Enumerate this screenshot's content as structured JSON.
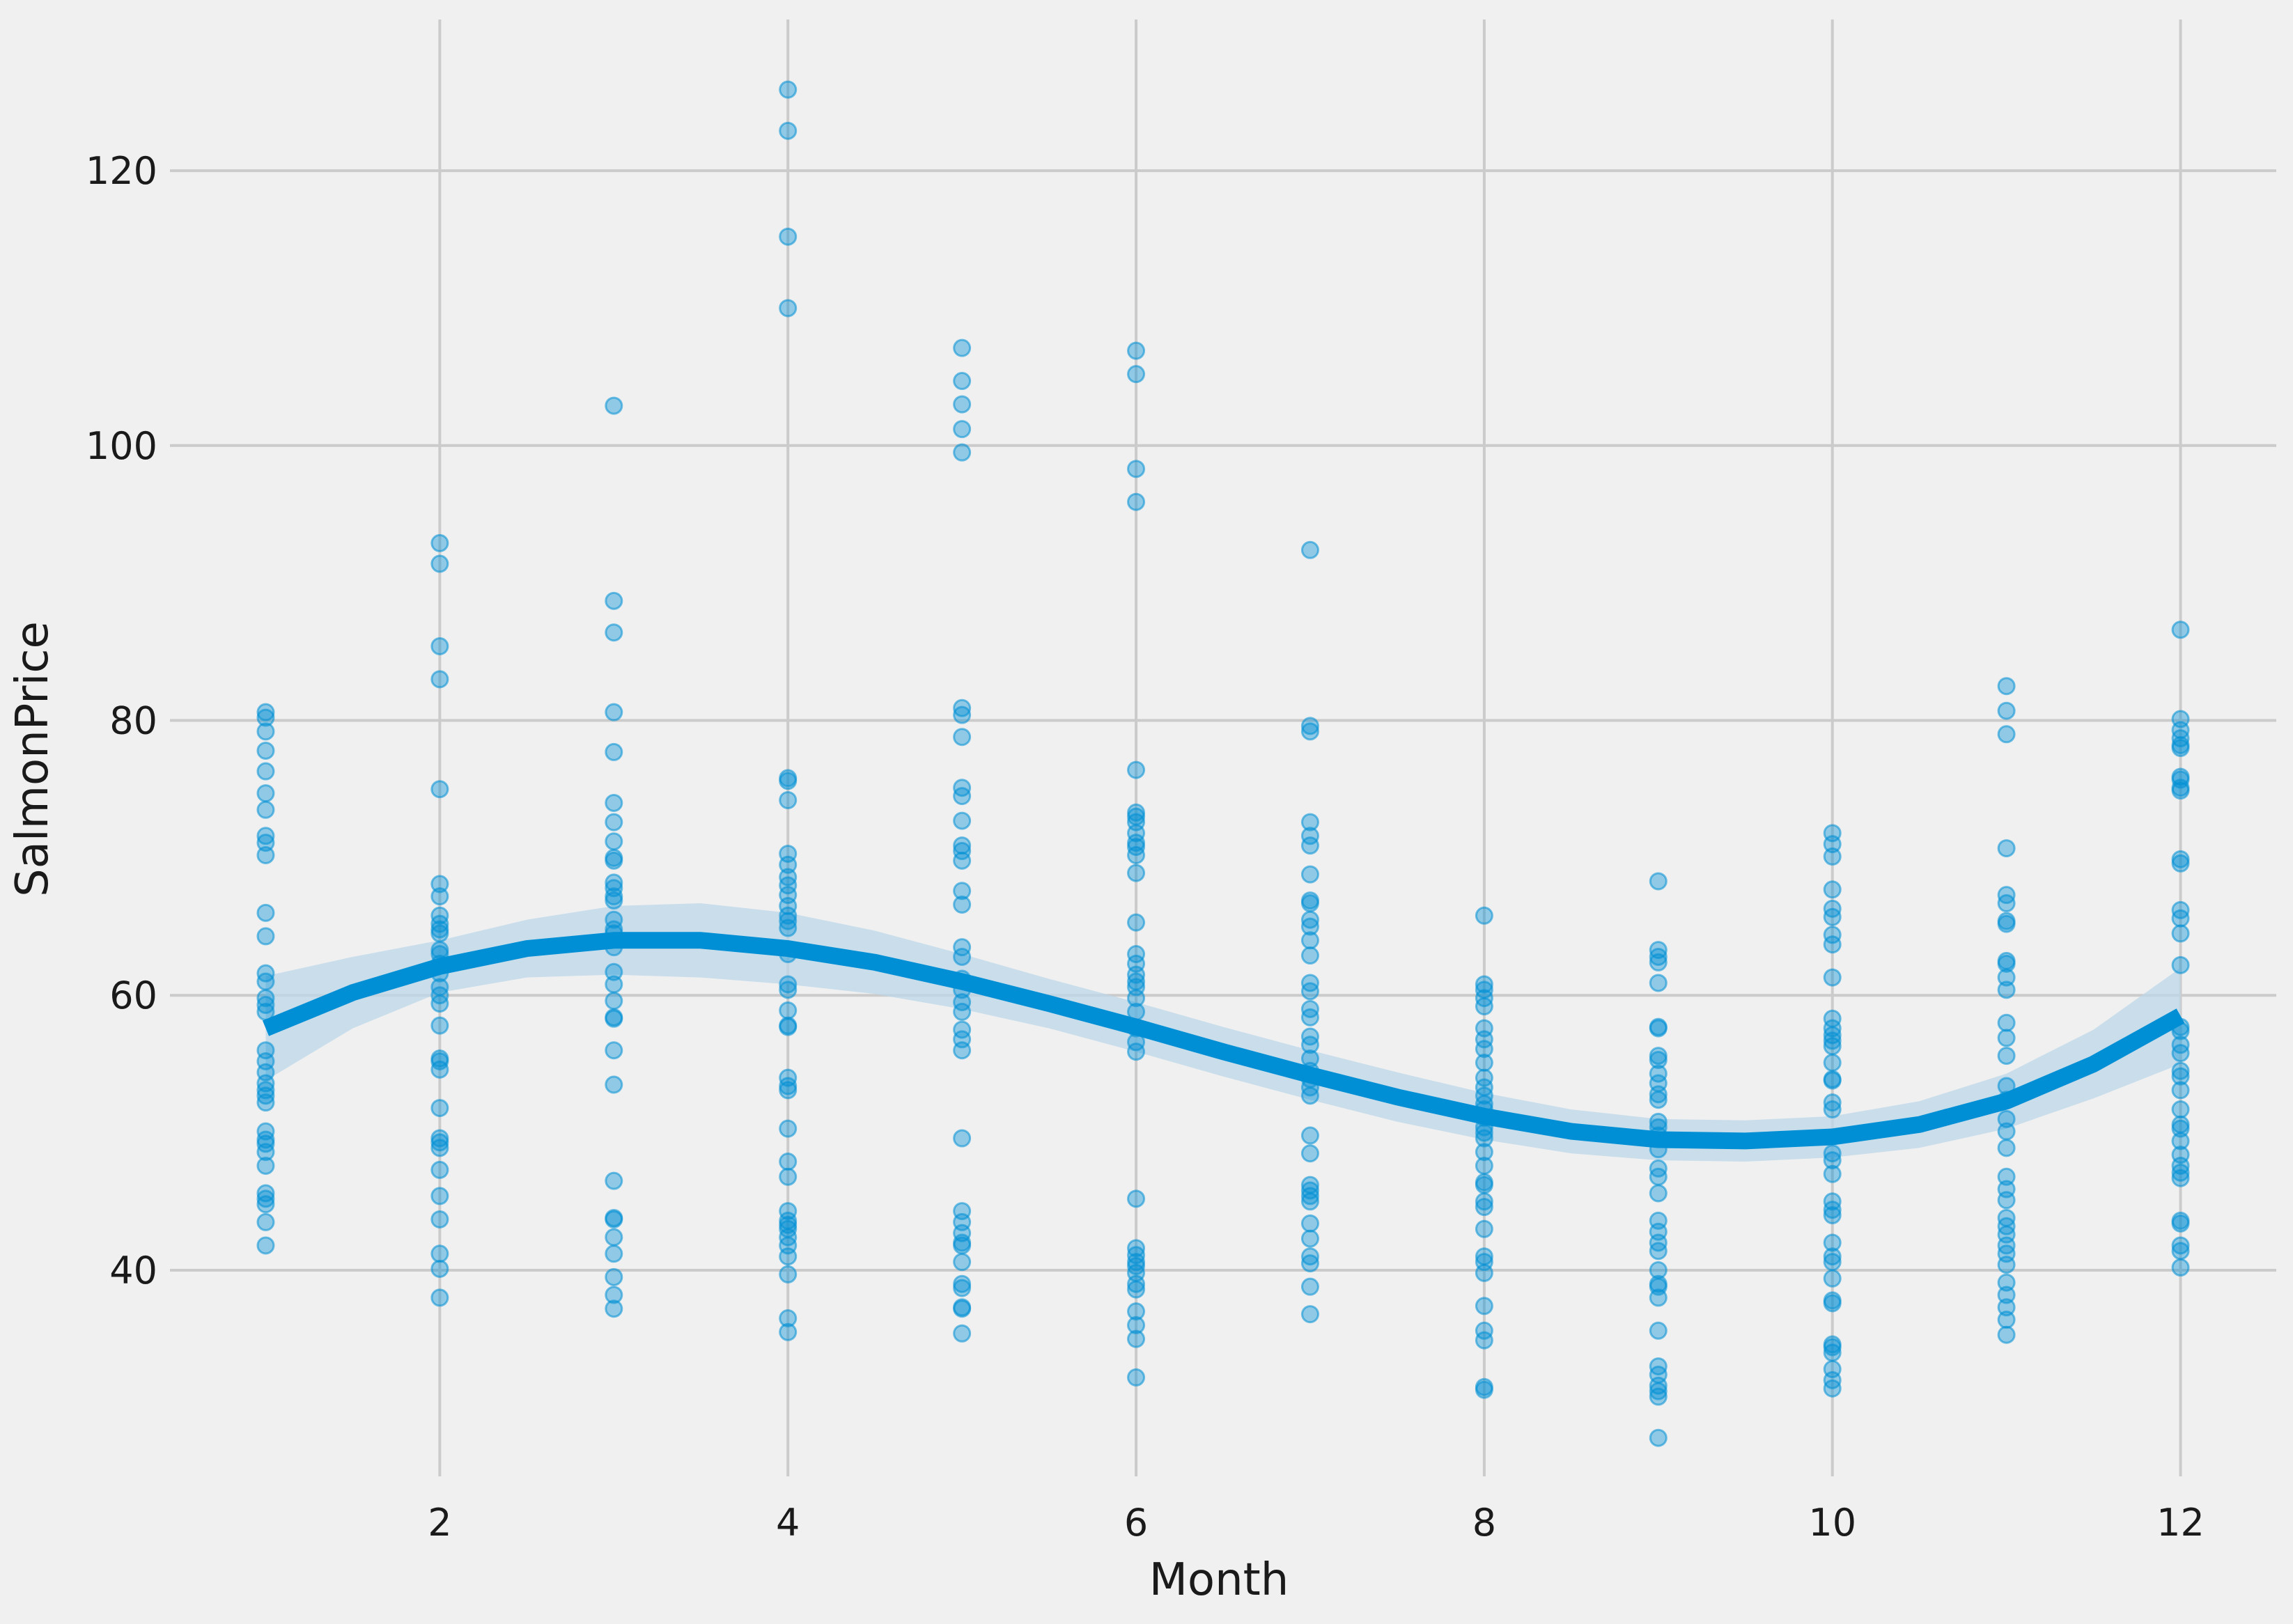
{
  "chart_data": {
    "type": "scatter",
    "xlabel": "Month",
    "ylabel": "SalmonPrice",
    "xlim": [
      0.45,
      12.55
    ],
    "ylim": [
      25,
      131
    ],
    "grid": true,
    "x_ticks": [
      2,
      4,
      6,
      8,
      10,
      12
    ],
    "y_ticks": [
      40,
      60,
      80,
      100,
      120
    ],
    "colors": {
      "points": "#008fd5",
      "fit_line": "#008fd5",
      "band": "#bcd7ea",
      "grid": "#cbcbcb",
      "background": "#f0f0f0"
    },
    "points": [
      {
        "x": 1,
        "y": [
          41.8,
          43.5,
          44.8,
          45.2,
          45.6,
          47.6,
          48.6,
          49.2,
          49.5,
          50.1,
          52.2,
          52.7,
          53.1,
          53.6,
          54.4,
          55.2,
          56.0,
          58.8,
          59.3,
          59.8,
          61.0,
          61.6,
          64.3,
          66.0,
          70.2,
          71.1,
          71.6,
          73.5,
          74.7,
          76.3,
          77.8,
          79.2,
          80.2,
          80.6
        ]
      },
      {
        "x": 2,
        "y": [
          38.0,
          40.1,
          41.2,
          43.7,
          45.4,
          47.3,
          48.9,
          49.3,
          49.6,
          51.8,
          54.6,
          55.2,
          55.4,
          57.8,
          59.4,
          60.0,
          60.6,
          61.6,
          62.3,
          63.0,
          63.3,
          64.5,
          64.8,
          65.2,
          65.8,
          67.2,
          68.1,
          75.0,
          83.0,
          85.4,
          91.4,
          92.9
        ]
      },
      {
        "x": 3,
        "y": [
          37.2,
          38.2,
          39.5,
          41.2,
          42.4,
          43.7,
          43.8,
          46.5,
          53.5,
          56.0,
          58.3,
          58.4,
          59.6,
          60.8,
          61.7,
          63.5,
          64.5,
          64.8,
          65.5,
          66.9,
          67.2,
          67.8,
          68.2,
          69.8,
          70.0,
          71.2,
          72.6,
          74.0,
          77.7,
          80.6,
          86.4,
          88.7,
          102.9
        ]
      },
      {
        "x": 4,
        "y": [
          35.5,
          36.5,
          39.7,
          41.0,
          41.8,
          42.4,
          43.0,
          43.3,
          43.6,
          44.3,
          46.8,
          47.9,
          50.3,
          53.1,
          53.4,
          54.0,
          57.7,
          57.8,
          58.9,
          60.4,
          60.8,
          63.0,
          64.9,
          65.4,
          65.8,
          66.5,
          67.3,
          68.0,
          68.6,
          69.5,
          70.3,
          74.2,
          75.6,
          75.8,
          110.0,
          115.2,
          122.9,
          125.9
        ]
      },
      {
        "x": 5,
        "y": [
          35.4,
          37.2,
          37.3,
          38.7,
          39.0,
          40.6,
          41.8,
          42.0,
          42.7,
          43.5,
          44.3,
          49.6,
          56.0,
          56.8,
          57.5,
          58.8,
          59.5,
          60.4,
          61.2,
          62.8,
          63.5,
          66.6,
          67.6,
          69.8,
          70.5,
          70.9,
          72.7,
          74.5,
          75.1,
          78.8,
          80.4,
          80.9,
          99.5,
          101.2,
          103.0,
          104.7,
          107.1
        ]
      },
      {
        "x": 6,
        "y": [
          32.2,
          35.0,
          36.0,
          37.0,
          38.6,
          39.0,
          39.8,
          40.3,
          40.6,
          41.1,
          41.6,
          45.2,
          55.9,
          56.6,
          57.6,
          58.8,
          59.8,
          60.6,
          61.0,
          61.5,
          62.3,
          63.0,
          65.3,
          68.9,
          70.2,
          70.8,
          71.1,
          71.8,
          72.6,
          73.0,
          73.3,
          76.4,
          95.9,
          98.3,
          105.2,
          106.9
        ]
      },
      {
        "x": 7,
        "y": [
          36.8,
          38.8,
          40.5,
          41.0,
          42.3,
          43.4,
          45.0,
          45.4,
          45.8,
          46.2,
          48.5,
          49.8,
          52.7,
          53.3,
          53.9,
          54.5,
          55.4,
          56.4,
          57.0,
          58.4,
          59.0,
          60.3,
          60.9,
          62.9,
          64.0,
          65.0,
          65.5,
          66.7,
          66.9,
          68.8,
          70.9,
          71.6,
          72.6,
          79.2,
          79.6,
          92.4
        ]
      },
      {
        "x": 8,
        "y": [
          31.3,
          31.5,
          34.9,
          35.6,
          37.4,
          39.8,
          40.6,
          41.0,
          43.0,
          44.6,
          45.0,
          46.2,
          46.4,
          47.6,
          48.6,
          49.6,
          50.0,
          50.4,
          51.1,
          51.7,
          52.1,
          52.7,
          53.3,
          54.0,
          55.1,
          56.1,
          56.8,
          57.6,
          59.2,
          59.8,
          60.4,
          60.8,
          65.8
        ]
      },
      {
        "x": 9,
        "y": [
          27.8,
          30.8,
          31.2,
          31.6,
          32.4,
          33.0,
          35.6,
          38.0,
          38.8,
          39.0,
          40.0,
          41.4,
          42.0,
          42.8,
          43.6,
          45.6,
          46.8,
          47.4,
          48.8,
          49.8,
          50.4,
          50.8,
          52.4,
          52.8,
          53.6,
          54.3,
          55.3,
          55.6,
          57.6,
          57.7,
          60.9,
          62.4,
          62.8,
          63.3,
          68.3
        ]
      },
      {
        "x": 10,
        "y": [
          31.4,
          32.0,
          32.8,
          34.0,
          34.4,
          34.6,
          37.6,
          37.8,
          39.4,
          40.6,
          41.0,
          42.0,
          44.0,
          44.4,
          45.0,
          47.0,
          48.0,
          48.5,
          51.7,
          52.2,
          53.8,
          53.9,
          55.1,
          56.3,
          56.7,
          57.1,
          57.6,
          58.3,
          61.3,
          63.7,
          64.4,
          65.7,
          66.3,
          67.7,
          70.1,
          71.0,
          71.8
        ]
      },
      {
        "x": 11,
        "y": [
          35.3,
          36.4,
          37.3,
          38.2,
          39.1,
          40.4,
          41.2,
          41.8,
          42.6,
          43.2,
          43.8,
          45.1,
          45.9,
          46.8,
          48.9,
          50.1,
          51.0,
          52.4,
          53.4,
          55.6,
          56.9,
          58.0,
          60.4,
          61.3,
          62.3,
          62.5,
          65.2,
          65.4,
          66.7,
          67.3,
          70.7,
          79.0,
          80.7,
          82.5
        ]
      },
      {
        "x": 12,
        "y": [
          40.2,
          41.4,
          41.8,
          43.4,
          43.6,
          46.7,
          47.1,
          47.6,
          48.4,
          49.4,
          50.3,
          50.6,
          51.7,
          53.1,
          54.1,
          54.5,
          55.8,
          56.4,
          57.4,
          57.7,
          62.2,
          64.5,
          65.6,
          66.2,
          69.6,
          69.9,
          74.9,
          75.1,
          75.7,
          75.9,
          78.0,
          78.2,
          78.7,
          79.3,
          80.1,
          86.6
        ]
      }
    ],
    "fit": {
      "x": [
        1,
        1.5,
        2,
        2.5,
        3,
        3.5,
        4,
        4.5,
        5,
        5.5,
        6,
        6.5,
        7,
        7.5,
        8,
        8.5,
        9,
        9.5,
        10,
        10.5,
        11,
        11.5,
        12
      ],
      "y": [
        57.6,
        60.2,
        62.1,
        63.4,
        64.0,
        64.0,
        63.4,
        62.4,
        61.0,
        59.4,
        57.7,
        55.9,
        54.2,
        52.6,
        51.2,
        50.1,
        49.5,
        49.4,
        49.7,
        50.6,
        52.3,
        55.0,
        58.5
      ],
      "band_halfwidth": [
        3.8,
        2.6,
        1.9,
        2.1,
        2.5,
        2.7,
        2.6,
        2.3,
        2.0,
        1.8,
        1.8,
        1.8,
        1.8,
        1.8,
        1.7,
        1.6,
        1.5,
        1.5,
        1.5,
        1.7,
        2.0,
        2.5,
        3.5
      ]
    }
  }
}
